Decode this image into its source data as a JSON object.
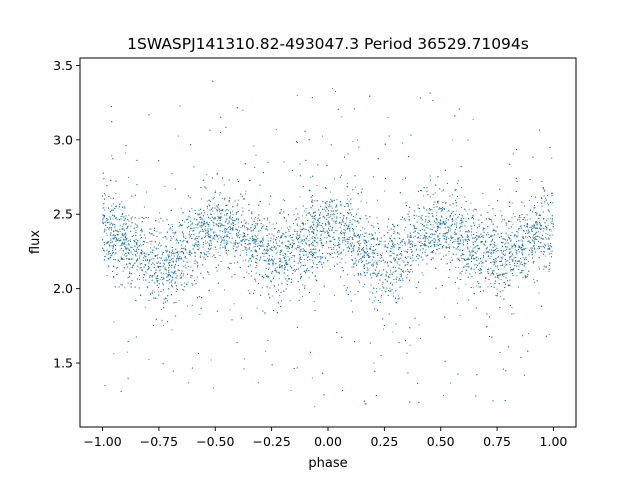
{
  "chart_data": {
    "type": "scatter",
    "title": "1SWASPJ141310.82-493047.3 Period 36529.71094s",
    "xlabel": "phase",
    "ylabel": "flux",
    "xlim": [
      -1.1,
      1.1
    ],
    "ylim": [
      1.07,
      3.55
    ],
    "x_ticks": [
      -1.0,
      -0.75,
      -0.5,
      -0.25,
      0.0,
      0.25,
      0.5,
      0.75,
      1.0
    ],
    "x_tick_labels": [
      "−1.00",
      "−0.75",
      "−0.50",
      "−0.25",
      "0.00",
      "0.25",
      "0.50",
      "0.75",
      "1.00"
    ],
    "y_ticks": [
      1.5,
      2.0,
      2.5,
      3.0,
      3.5
    ],
    "y_tick_labels": [
      "1.5",
      "2.0",
      "2.5",
      "3.0",
      "3.5"
    ],
    "grid": false,
    "legend": "none",
    "marker_color": "#1f77b4",
    "series": [
      {
        "phase_range": [
          -1.0,
          1.0
        ],
        "trend": {
          "x": [
            -1.0,
            -0.85,
            -0.72,
            -0.6,
            -0.5,
            -0.4,
            -0.28,
            -0.22,
            -0.1,
            0.0,
            0.1,
            0.2,
            0.25,
            0.3,
            0.4,
            0.5,
            0.6,
            0.72,
            0.78,
            0.9,
            1.0
          ],
          "y": [
            2.38,
            2.28,
            2.12,
            2.3,
            2.42,
            2.38,
            2.24,
            2.2,
            2.32,
            2.42,
            2.36,
            2.22,
            2.13,
            2.2,
            2.36,
            2.42,
            2.3,
            2.24,
            2.2,
            2.33,
            2.4
          ]
        },
        "scatter_std": 0.13,
        "outlier_range": [
          1.2,
          3.35
        ]
      }
    ]
  }
}
